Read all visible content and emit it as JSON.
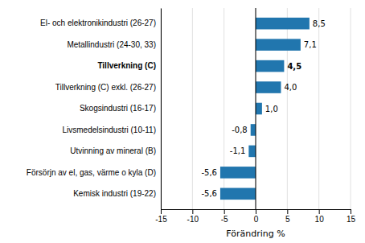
{
  "chart_data": {
    "type": "bar",
    "orientation": "horizontal",
    "categories": [
      "Kemisk industri (19-22)",
      "Försörjn av el, gas, värme o kyla (D)",
      "Utvinning av mineral (B)",
      "Livsmedelsindustri (10-11)",
      "Skogsindustri (16-17)",
      "Tillverkning (C) exkl. (26-27)",
      "Tillverkning (C)",
      "Metallindustri (24-30, 33)",
      "El- och elektronikindustri (26-27)"
    ],
    "values": [
      -5.6,
      -5.6,
      -1.1,
      -0.8,
      1.0,
      4.0,
      4.5,
      7.1,
      8.5
    ],
    "value_labels": [
      "-5,6",
      "-5,6",
      "-1,1",
      "-0,8",
      "1,0",
      "4,0",
      "4,5",
      "7,1",
      "8,5"
    ],
    "data_labels": true,
    "color": "#2176ae",
    "xlabel": "Förändring %",
    "xlim": [
      -15,
      15
    ],
    "xticks": [
      -15,
      -10,
      -5,
      0,
      5,
      10,
      15
    ],
    "grid": true
  }
}
